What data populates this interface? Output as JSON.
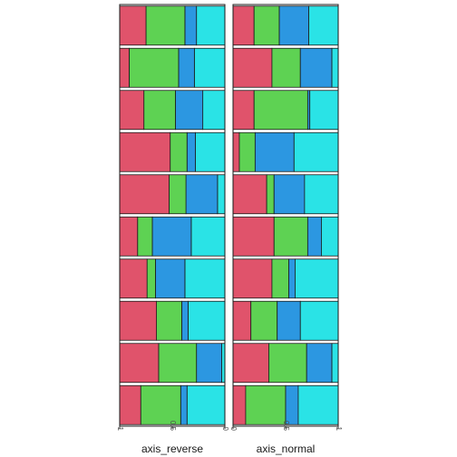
{
  "chart_data": [
    {
      "type": "bar",
      "orientation": "horizontal",
      "stacked": "proportion",
      "scale": "reverse",
      "xlabel": "axis_reverse",
      "ylabel": "",
      "xlim": [
        0,
        1
      ],
      "x_ticks": [
        "0",
        "0.5",
        "1"
      ],
      "grid": false,
      "series_colors": [
        "#2ae3e6",
        "#2c97e1",
        "#5ed253",
        "#e0536b"
      ],
      "rows": [
        [
          0.27,
          0.11,
          0.37,
          0.25
        ],
        [
          0.29,
          0.15,
          0.47,
          0.09
        ],
        [
          0.21,
          0.26,
          0.3,
          0.23
        ],
        [
          0.28,
          0.08,
          0.16,
          0.48
        ],
        [
          0.07,
          0.3,
          0.16,
          0.47
        ],
        [
          0.32,
          0.37,
          0.14,
          0.17
        ],
        [
          0.38,
          0.28,
          0.08,
          0.26
        ],
        [
          0.35,
          0.06,
          0.24,
          0.35
        ],
        [
          0.03,
          0.24,
          0.36,
          0.37
        ],
        [
          0.36,
          0.06,
          0.38,
          0.2
        ]
      ]
    },
    {
      "type": "bar",
      "orientation": "horizontal",
      "stacked": "proportion",
      "scale": "normal",
      "xlabel": "axis_normal",
      "ylabel": "",
      "xlim": [
        0,
        1
      ],
      "x_ticks": [
        "0",
        "0.5",
        "1"
      ],
      "grid": false,
      "series_colors": [
        "#e0536b",
        "#5ed253",
        "#2c97e1",
        "#2ae3e6"
      ],
      "rows": [
        [
          0.2,
          0.24,
          0.28,
          0.28
        ],
        [
          0.37,
          0.27,
          0.3,
          0.06
        ],
        [
          0.2,
          0.51,
          0.02,
          0.27
        ],
        [
          0.06,
          0.15,
          0.37,
          0.42
        ],
        [
          0.32,
          0.07,
          0.29,
          0.32
        ],
        [
          0.39,
          0.32,
          0.13,
          0.16
        ],
        [
          0.37,
          0.16,
          0.06,
          0.41
        ],
        [
          0.17,
          0.25,
          0.22,
          0.36
        ],
        [
          0.34,
          0.36,
          0.24,
          0.06
        ],
        [
          0.12,
          0.38,
          0.12,
          0.38
        ]
      ]
    }
  ]
}
